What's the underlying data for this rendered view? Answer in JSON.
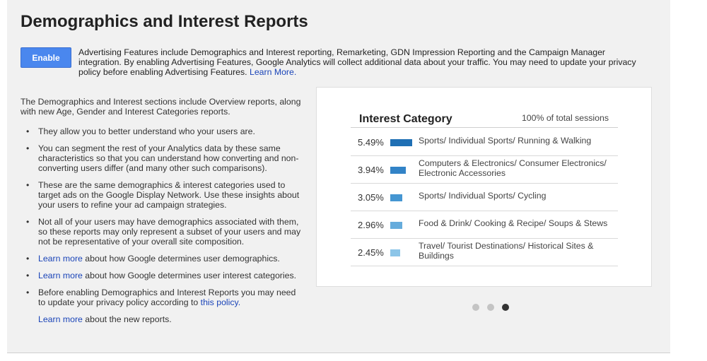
{
  "header": {
    "title": "Demographics and Interest Reports"
  },
  "enable_button": {
    "label": "Enable"
  },
  "intro": {
    "text": "Advertising Features include Demographics and Interest reporting, Remarketing, GDN Impression Reporting and the Campaign Manager integration. By enabling Advertising Features, Google Analytics will collect additional data about your traffic. You may need to update your privacy policy before enabling Advertising Features. ",
    "link": "Learn More."
  },
  "left": {
    "lead": "The Demographics and Interest sections include Overview reports, along with new Age, Gender and Interest Categories reports.",
    "bullets": [
      "They allow you to better understand who your users are.",
      "You can segment the rest of your Analytics data by these same characteristics so that you can understand how converting and non-converting users differ (and many other such comparisons).",
      "These are the same demographics & interest categories used to target ads on the Google Display Network. Use these insights about your users to refine your ad campaign strategies.",
      "Not all of your users may have demographics associated with them, so these reports may only represent a subset of your users and may not be representative of your overall site composition."
    ],
    "link_items": [
      {
        "link": "Learn more",
        "rest": " about how Google determines user demographics."
      },
      {
        "link": "Learn more",
        "rest": " about how Google determines user interest categories."
      }
    ],
    "policy": {
      "text": "Before enabling Demographics and Interest Reports you may need to update your privacy policy according to ",
      "link": "this policy."
    },
    "footer": {
      "link": "Learn more",
      "rest": " about the new reports."
    }
  },
  "card": {
    "title": "Interest Category",
    "subtitle": "100% of total sessions",
    "rows": [
      {
        "pct": "5.49%",
        "value": 5.49,
        "color": "#1f6fb4",
        "label": "Sports/ Individual Sports/ Running & Walking"
      },
      {
        "pct": "3.94%",
        "value": 3.94,
        "color": "#3283c7",
        "label": "Computers & Electronics/ Consumer Electronics/ Electronic Accessories"
      },
      {
        "pct": "3.05%",
        "value": 3.05,
        "color": "#4596d2",
        "label": "Sports/ Individual Sports/ Cycling"
      },
      {
        "pct": "2.96%",
        "value": 2.96,
        "color": "#66acdc",
        "label": "Food & Drink/ Cooking & Recipe/ Soups & Stews"
      },
      {
        "pct": "2.45%",
        "value": 2.45,
        "color": "#8cc5e8",
        "label": "Travel/ Tourist Destinations/ Historical Sites & Buildings"
      }
    ]
  },
  "carousel": {
    "count": 3,
    "active": 3,
    "active_color": "#333333",
    "inactive_color": "#c4c4c4"
  }
}
